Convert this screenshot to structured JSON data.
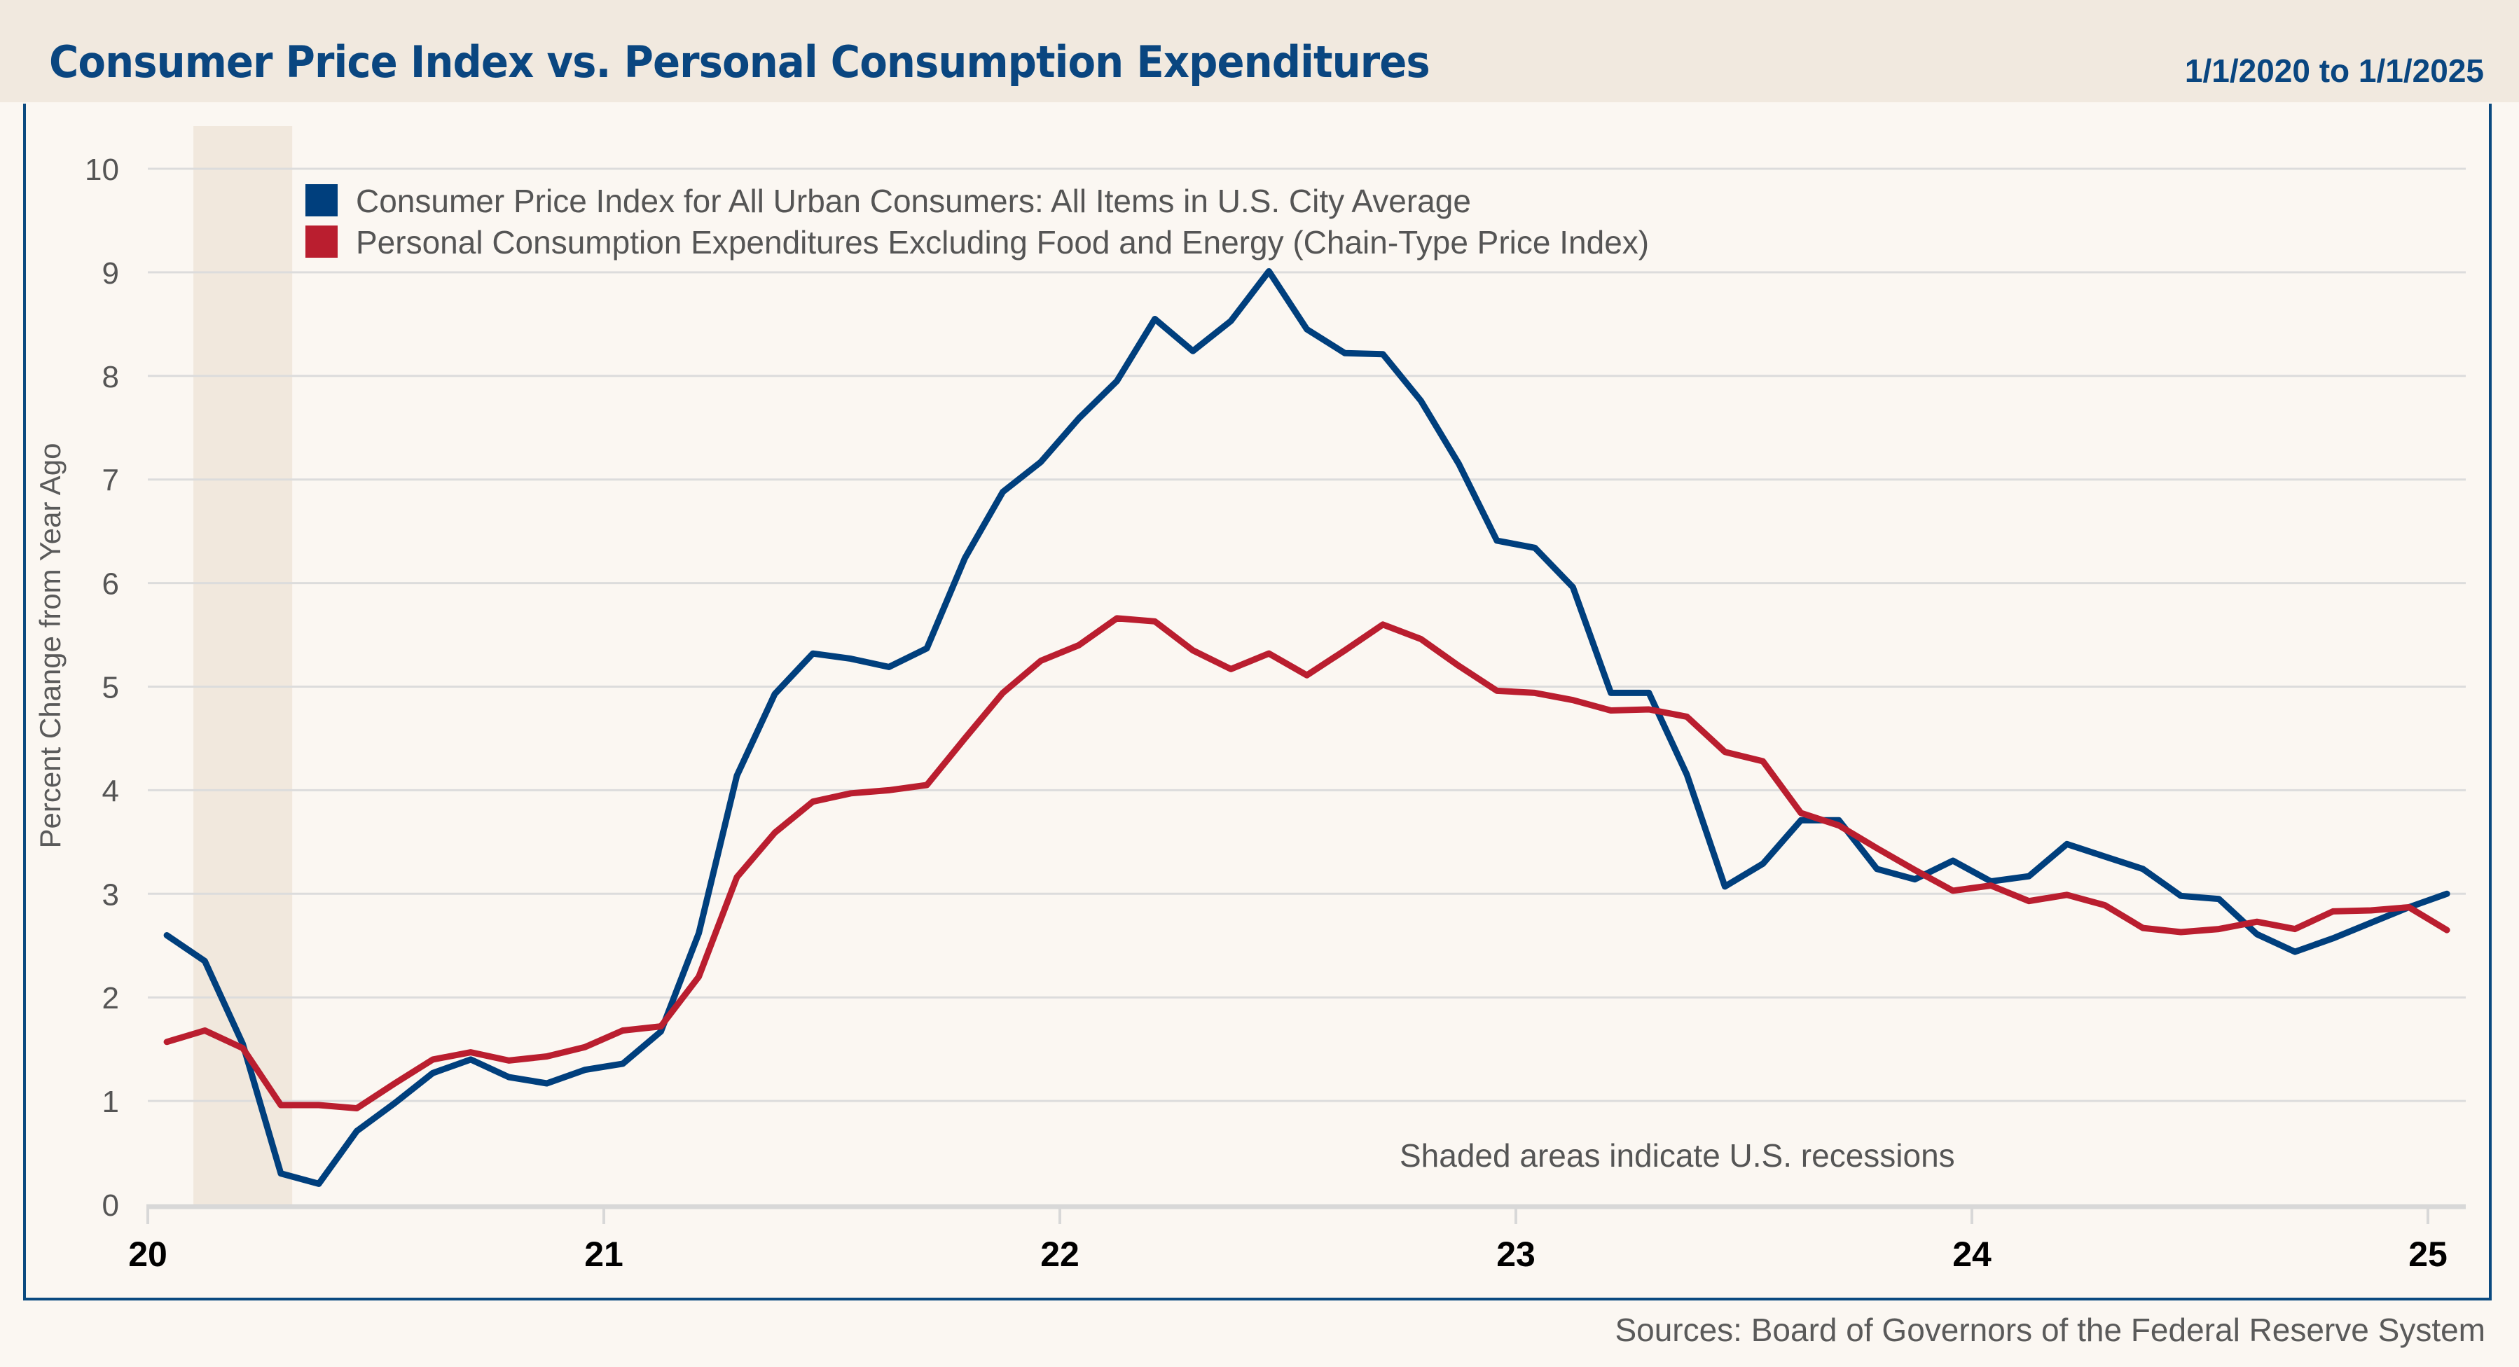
{
  "header": {
    "title": "Consumer Price Index vs. Personal Consumption Expenditures",
    "date_range": "1/1/2020 to 1/1/2025"
  },
  "footer": {
    "source": "Sources: Board of Governors of the Federal Reserve System"
  },
  "colors": {
    "cpi": "#003F7D",
    "pce": "#BA1E2F",
    "title": "#0A4680",
    "header_bg": "#F1E9DF",
    "page_bg": "#FBF7F2",
    "recession_shade": "#F1E8DD",
    "gridline": "#DCDCDC"
  },
  "chart_data": {
    "type": "line",
    "title": "Consumer Price Index vs. Personal Consumption Expenditures",
    "xlabel": "",
    "ylabel": "Percent Change from Year Ago",
    "ylim": [
      0,
      10
    ],
    "yticks": [
      "0",
      "1",
      "2",
      "3",
      "4",
      "5",
      "6",
      "7",
      "8",
      "9",
      "10"
    ],
    "xticks": [
      "20",
      "21",
      "22",
      "23",
      "24",
      "25"
    ],
    "grid": true,
    "legend_position": "top-left",
    "annotation": "Shaded areas indicate U.S. recessions",
    "recessions": [
      {
        "start": "2020-02",
        "end": "2020-04"
      }
    ],
    "x_start": "2020-01",
    "x_frequency": "monthly",
    "series": [
      {
        "name": "Consumer Price Index for All Urban Consumers: All Items in U.S. City Average",
        "color": "#003F7D",
        "values": [
          2.6,
          2.35,
          1.55,
          0.3,
          0.2,
          0.71,
          0.98,
          1.27,
          1.4,
          1.23,
          1.17,
          1.3,
          1.36,
          1.67,
          2.62,
          4.14,
          4.93,
          5.32,
          5.27,
          5.19,
          5.37,
          6.24,
          6.88,
          7.17,
          7.59,
          7.95,
          8.55,
          8.24,
          8.53,
          9.01,
          8.45,
          8.22,
          8.21,
          7.76,
          7.15,
          6.41,
          6.34,
          5.96,
          4.94,
          4.94,
          4.15,
          3.07,
          3.29,
          3.71,
          3.71,
          3.24,
          3.14,
          3.32,
          3.12,
          3.17,
          3.48,
          3.36,
          3.24,
          2.98,
          2.95,
          2.61,
          2.44,
          2.57,
          2.72,
          2.87,
          3.0
        ]
      },
      {
        "name": "Personal Consumption Expenditures Excluding Food and Energy (Chain-Type Price Index)",
        "color": "#BA1E2F",
        "values": [
          1.57,
          1.68,
          1.51,
          0.96,
          0.96,
          0.93,
          1.17,
          1.4,
          1.47,
          1.39,
          1.43,
          1.52,
          1.68,
          1.72,
          2.2,
          3.16,
          3.59,
          3.89,
          3.97,
          4.0,
          4.05,
          4.5,
          4.94,
          5.25,
          5.4,
          5.66,
          5.63,
          5.35,
          5.17,
          5.32,
          5.11,
          5.35,
          5.6,
          5.46,
          5.2,
          4.96,
          4.94,
          4.87,
          4.77,
          4.78,
          4.71,
          4.37,
          4.28,
          3.78,
          3.66,
          3.44,
          3.23,
          3.03,
          3.08,
          2.93,
          2.99,
          2.89,
          2.67,
          2.63,
          2.66,
          2.73,
          2.66,
          2.83,
          2.84,
          2.87,
          2.65
        ]
      }
    ]
  }
}
